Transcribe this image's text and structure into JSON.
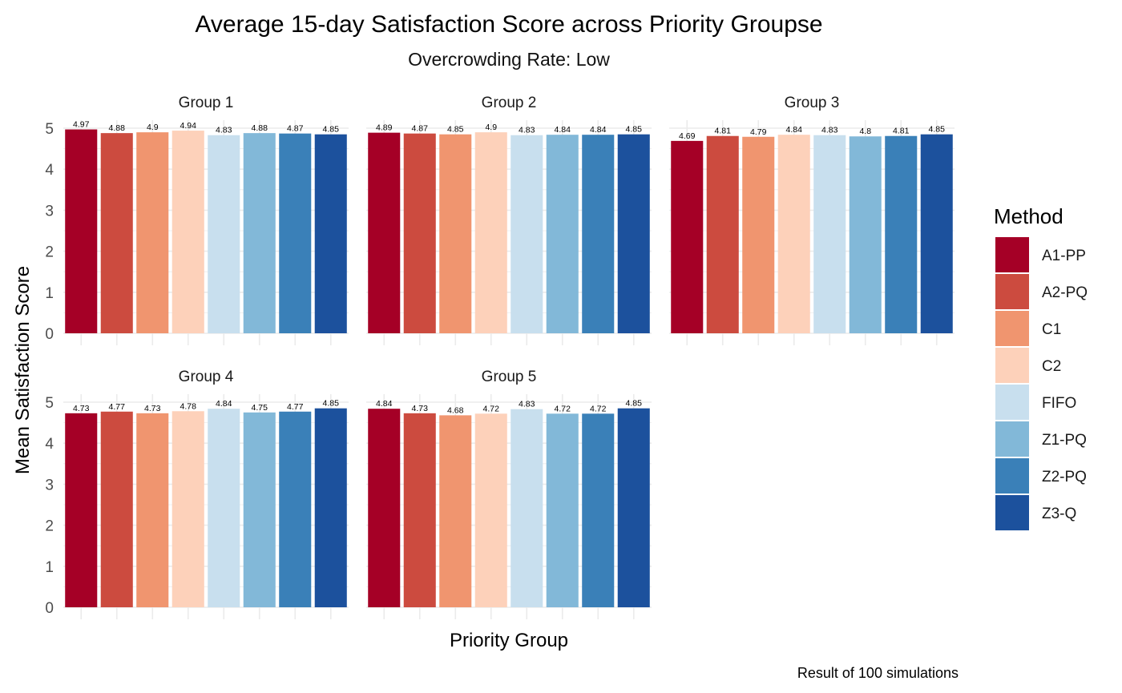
{
  "chart_data": {
    "type": "bar",
    "title": "Average 15-day Satisfaction Score across Priority Groupse",
    "subtitle": "Overcrowding Rate: Low",
    "xlabel": "Priority Group",
    "ylabel": "Mean Satisfaction Score",
    "caption": "Result of 100 simulations",
    "ylim": [
      0,
      5
    ],
    "yticks": [
      0,
      1,
      2,
      3,
      4,
      5
    ],
    "grid": true,
    "legend": {
      "title": "Method",
      "position": "right"
    },
    "methods": [
      "A1-PP",
      "A2-PQ",
      "C1",
      "C2",
      "FIFO",
      "Z1-PQ",
      "Z2-PQ",
      "Z3-Q"
    ],
    "colors": [
      "#A50026",
      "#CC4B3F",
      "#F0956F",
      "#FDD1BA",
      "#C8DFEE",
      "#82B8D8",
      "#3A80B8",
      "#1C519D"
    ],
    "panels": [
      {
        "label": "Group 1",
        "values": [
          4.97,
          4.88,
          4.9,
          4.94,
          4.83,
          4.88,
          4.87,
          4.85
        ]
      },
      {
        "label": "Group 2",
        "values": [
          4.89,
          4.87,
          4.85,
          4.9,
          4.83,
          4.84,
          4.84,
          4.85
        ]
      },
      {
        "label": "Group 3",
        "values": [
          4.69,
          4.81,
          4.79,
          4.84,
          4.83,
          4.8,
          4.81,
          4.85
        ]
      },
      {
        "label": "Group 4",
        "values": [
          4.73,
          4.77,
          4.73,
          4.78,
          4.84,
          4.75,
          4.77,
          4.85
        ]
      },
      {
        "label": "Group 5",
        "values": [
          4.84,
          4.73,
          4.68,
          4.72,
          4.83,
          4.72,
          4.72,
          4.85
        ]
      }
    ]
  }
}
